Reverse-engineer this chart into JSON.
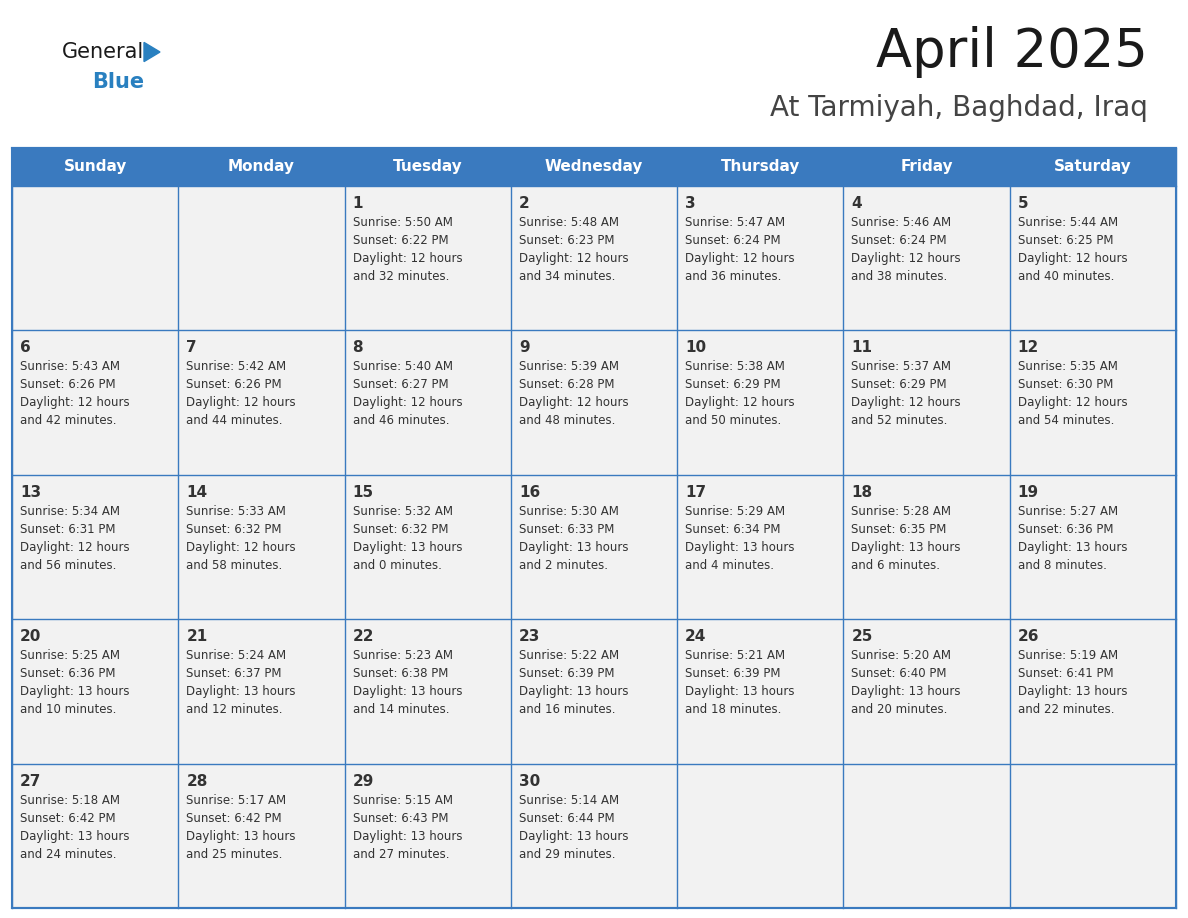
{
  "title": "April 2025",
  "subtitle": "At Tarmiyah, Baghdad, Iraq",
  "days_of_week": [
    "Sunday",
    "Monday",
    "Tuesday",
    "Wednesday",
    "Thursday",
    "Friday",
    "Saturday"
  ],
  "header_bg": "#3a7abf",
  "header_text": "#ffffff",
  "cell_bg": "#f2f2f2",
  "cell_bg_white": "#ffffff",
  "grid_line_color": "#3a7abf",
  "text_color": "#333333",
  "title_color": "#1a1a1a",
  "subtitle_color": "#444444",
  "logo_color1": "#1a1a1a",
  "logo_color2": "#2980c0",
  "calendar_data": [
    [
      {
        "day": null,
        "info": null
      },
      {
        "day": null,
        "info": null
      },
      {
        "day": 1,
        "sunrise": "Sunrise: 5:50 AM",
        "sunset": "Sunset: 6:22 PM",
        "daylight1": "Daylight: 12 hours",
        "daylight2": "and 32 minutes."
      },
      {
        "day": 2,
        "sunrise": "Sunrise: 5:48 AM",
        "sunset": "Sunset: 6:23 PM",
        "daylight1": "Daylight: 12 hours",
        "daylight2": "and 34 minutes."
      },
      {
        "day": 3,
        "sunrise": "Sunrise: 5:47 AM",
        "sunset": "Sunset: 6:24 PM",
        "daylight1": "Daylight: 12 hours",
        "daylight2": "and 36 minutes."
      },
      {
        "day": 4,
        "sunrise": "Sunrise: 5:46 AM",
        "sunset": "Sunset: 6:24 PM",
        "daylight1": "Daylight: 12 hours",
        "daylight2": "and 38 minutes."
      },
      {
        "day": 5,
        "sunrise": "Sunrise: 5:44 AM",
        "sunset": "Sunset: 6:25 PM",
        "daylight1": "Daylight: 12 hours",
        "daylight2": "and 40 minutes."
      }
    ],
    [
      {
        "day": 6,
        "sunrise": "Sunrise: 5:43 AM",
        "sunset": "Sunset: 6:26 PM",
        "daylight1": "Daylight: 12 hours",
        "daylight2": "and 42 minutes."
      },
      {
        "day": 7,
        "sunrise": "Sunrise: 5:42 AM",
        "sunset": "Sunset: 6:26 PM",
        "daylight1": "Daylight: 12 hours",
        "daylight2": "and 44 minutes."
      },
      {
        "day": 8,
        "sunrise": "Sunrise: 5:40 AM",
        "sunset": "Sunset: 6:27 PM",
        "daylight1": "Daylight: 12 hours",
        "daylight2": "and 46 minutes."
      },
      {
        "day": 9,
        "sunrise": "Sunrise: 5:39 AM",
        "sunset": "Sunset: 6:28 PM",
        "daylight1": "Daylight: 12 hours",
        "daylight2": "and 48 minutes."
      },
      {
        "day": 10,
        "sunrise": "Sunrise: 5:38 AM",
        "sunset": "Sunset: 6:29 PM",
        "daylight1": "Daylight: 12 hours",
        "daylight2": "and 50 minutes."
      },
      {
        "day": 11,
        "sunrise": "Sunrise: 5:37 AM",
        "sunset": "Sunset: 6:29 PM",
        "daylight1": "Daylight: 12 hours",
        "daylight2": "and 52 minutes."
      },
      {
        "day": 12,
        "sunrise": "Sunrise: 5:35 AM",
        "sunset": "Sunset: 6:30 PM",
        "daylight1": "Daylight: 12 hours",
        "daylight2": "and 54 minutes."
      }
    ],
    [
      {
        "day": 13,
        "sunrise": "Sunrise: 5:34 AM",
        "sunset": "Sunset: 6:31 PM",
        "daylight1": "Daylight: 12 hours",
        "daylight2": "and 56 minutes."
      },
      {
        "day": 14,
        "sunrise": "Sunrise: 5:33 AM",
        "sunset": "Sunset: 6:32 PM",
        "daylight1": "Daylight: 12 hours",
        "daylight2": "and 58 minutes."
      },
      {
        "day": 15,
        "sunrise": "Sunrise: 5:32 AM",
        "sunset": "Sunset: 6:32 PM",
        "daylight1": "Daylight: 13 hours",
        "daylight2": "and 0 minutes."
      },
      {
        "day": 16,
        "sunrise": "Sunrise: 5:30 AM",
        "sunset": "Sunset: 6:33 PM",
        "daylight1": "Daylight: 13 hours",
        "daylight2": "and 2 minutes."
      },
      {
        "day": 17,
        "sunrise": "Sunrise: 5:29 AM",
        "sunset": "Sunset: 6:34 PM",
        "daylight1": "Daylight: 13 hours",
        "daylight2": "and 4 minutes."
      },
      {
        "day": 18,
        "sunrise": "Sunrise: 5:28 AM",
        "sunset": "Sunset: 6:35 PM",
        "daylight1": "Daylight: 13 hours",
        "daylight2": "and 6 minutes."
      },
      {
        "day": 19,
        "sunrise": "Sunrise: 5:27 AM",
        "sunset": "Sunset: 6:36 PM",
        "daylight1": "Daylight: 13 hours",
        "daylight2": "and 8 minutes."
      }
    ],
    [
      {
        "day": 20,
        "sunrise": "Sunrise: 5:25 AM",
        "sunset": "Sunset: 6:36 PM",
        "daylight1": "Daylight: 13 hours",
        "daylight2": "and 10 minutes."
      },
      {
        "day": 21,
        "sunrise": "Sunrise: 5:24 AM",
        "sunset": "Sunset: 6:37 PM",
        "daylight1": "Daylight: 13 hours",
        "daylight2": "and 12 minutes."
      },
      {
        "day": 22,
        "sunrise": "Sunrise: 5:23 AM",
        "sunset": "Sunset: 6:38 PM",
        "daylight1": "Daylight: 13 hours",
        "daylight2": "and 14 minutes."
      },
      {
        "day": 23,
        "sunrise": "Sunrise: 5:22 AM",
        "sunset": "Sunset: 6:39 PM",
        "daylight1": "Daylight: 13 hours",
        "daylight2": "and 16 minutes."
      },
      {
        "day": 24,
        "sunrise": "Sunrise: 5:21 AM",
        "sunset": "Sunset: 6:39 PM",
        "daylight1": "Daylight: 13 hours",
        "daylight2": "and 18 minutes."
      },
      {
        "day": 25,
        "sunrise": "Sunrise: 5:20 AM",
        "sunset": "Sunset: 6:40 PM",
        "daylight1": "Daylight: 13 hours",
        "daylight2": "and 20 minutes."
      },
      {
        "day": 26,
        "sunrise": "Sunrise: 5:19 AM",
        "sunset": "Sunset: 6:41 PM",
        "daylight1": "Daylight: 13 hours",
        "daylight2": "and 22 minutes."
      }
    ],
    [
      {
        "day": 27,
        "sunrise": "Sunrise: 5:18 AM",
        "sunset": "Sunset: 6:42 PM",
        "daylight1": "Daylight: 13 hours",
        "daylight2": "and 24 minutes."
      },
      {
        "day": 28,
        "sunrise": "Sunrise: 5:17 AM",
        "sunset": "Sunset: 6:42 PM",
        "daylight1": "Daylight: 13 hours",
        "daylight2": "and 25 minutes."
      },
      {
        "day": 29,
        "sunrise": "Sunrise: 5:15 AM",
        "sunset": "Sunset: 6:43 PM",
        "daylight1": "Daylight: 13 hours",
        "daylight2": "and 27 minutes."
      },
      {
        "day": 30,
        "sunrise": "Sunrise: 5:14 AM",
        "sunset": "Sunset: 6:44 PM",
        "daylight1": "Daylight: 13 hours",
        "daylight2": "and 29 minutes."
      },
      {
        "day": null,
        "info": null
      },
      {
        "day": null,
        "info": null
      },
      {
        "day": null,
        "info": null
      }
    ]
  ]
}
